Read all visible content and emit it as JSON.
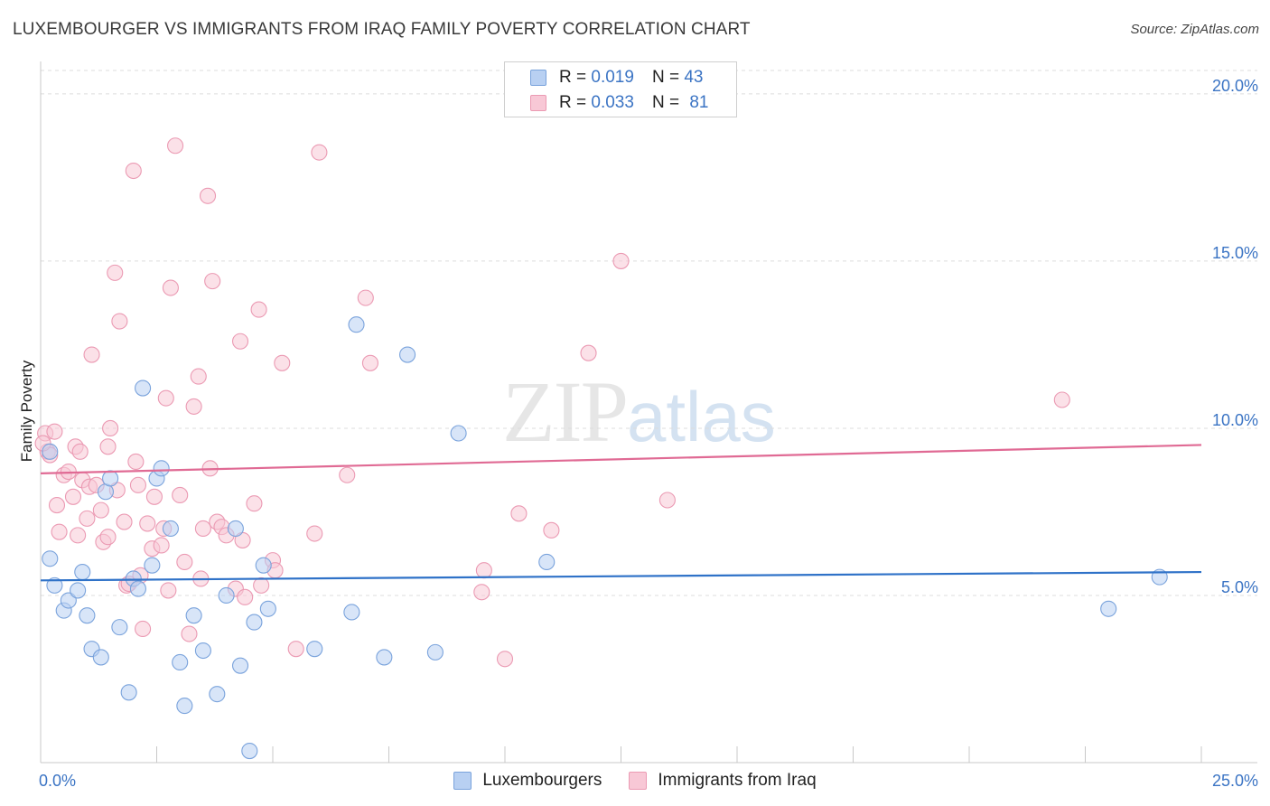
{
  "header": {
    "title": "LUXEMBOURGER VS IMMIGRANTS FROM IRAQ FAMILY POVERTY CORRELATION CHART",
    "source": "Source: ZipAtlas.com"
  },
  "watermark": {
    "zip": "ZIP",
    "atlas": "atlas"
  },
  "legend_top": {
    "rows": [
      {
        "r_label": "R = ",
        "r_value": "0.019",
        "n_label": "N = ",
        "n_value": "43"
      },
      {
        "r_label": "R = ",
        "r_value": "0.033",
        "n_label": "N = ",
        "n_value": "81"
      }
    ]
  },
  "legend_bottom": {
    "items": [
      {
        "label": "Luxembourgers"
      },
      {
        "label": "Immigrants from Iraq"
      }
    ]
  },
  "colors": {
    "blue_fill": "#b8d0f2",
    "blue_stroke": "#7aa3dc",
    "blue_line": "#2f72c8",
    "pink_fill": "#f8c8d6",
    "pink_stroke": "#eb9ab3",
    "pink_line": "#e06a94",
    "tick_text": "#3b74c4",
    "grid": "#dcdcdc"
  },
  "chart_data": {
    "type": "scatter",
    "title": "LUXEMBOURGER VS IMMIGRANTS FROM IRAQ FAMILY POVERTY CORRELATION CHART",
    "xlabel": "",
    "ylabel": "Family Poverty",
    "xlim": [
      0,
      25
    ],
    "ylim": [
      0,
      20.7
    ],
    "x_tick_labels": [
      "0.0%",
      "25.0%"
    ],
    "y_ticks": [
      5,
      10,
      15,
      20
    ],
    "y_tick_labels": [
      "5.0%",
      "10.0%",
      "15.0%",
      "20.0%"
    ],
    "series": [
      {
        "name": "Luxembourgers",
        "color": "blue",
        "R": 0.019,
        "N": 43,
        "trend": {
          "x": [
            0,
            25
          ],
          "y": [
            5.45,
            5.7
          ]
        },
        "points": [
          [
            0.2,
            9.3
          ],
          [
            0.2,
            6.1
          ],
          [
            0.3,
            5.3
          ],
          [
            0.5,
            4.55
          ],
          [
            0.6,
            4.85
          ],
          [
            0.8,
            5.15
          ],
          [
            0.9,
            5.7
          ],
          [
            1.0,
            4.4
          ],
          [
            1.1,
            3.4
          ],
          [
            1.3,
            3.15
          ],
          [
            1.4,
            8.1
          ],
          [
            1.5,
            8.5
          ],
          [
            1.7,
            4.05
          ],
          [
            1.9,
            2.1
          ],
          [
            2.0,
            5.5
          ],
          [
            2.1,
            5.2
          ],
          [
            2.2,
            11.2
          ],
          [
            2.4,
            5.9
          ],
          [
            2.5,
            8.5
          ],
          [
            2.6,
            8.8
          ],
          [
            2.8,
            7.0
          ],
          [
            3.0,
            3.0
          ],
          [
            3.1,
            1.7
          ],
          [
            3.3,
            4.4
          ],
          [
            3.5,
            3.35
          ],
          [
            3.8,
            2.05
          ],
          [
            4.0,
            5.0
          ],
          [
            4.2,
            7.0
          ],
          [
            4.3,
            2.9
          ],
          [
            4.5,
            0.35
          ],
          [
            4.6,
            4.2
          ],
          [
            4.8,
            5.9
          ],
          [
            4.9,
            4.6
          ],
          [
            5.9,
            3.4
          ],
          [
            6.7,
            4.5
          ],
          [
            6.8,
            13.1
          ],
          [
            7.4,
            3.15
          ],
          [
            7.9,
            12.2
          ],
          [
            8.5,
            3.3
          ],
          [
            9.0,
            9.85
          ],
          [
            10.9,
            6.0
          ],
          [
            23.0,
            4.6
          ],
          [
            24.1,
            5.55
          ]
        ]
      },
      {
        "name": "Immigrants from Iraq",
        "color": "pink",
        "R": 0.033,
        "N": 81,
        "trend": {
          "x": [
            0,
            25
          ],
          "y": [
            8.65,
            9.5
          ]
        },
        "points": [
          [
            0.1,
            9.85
          ],
          [
            0.15,
            9.3
          ],
          [
            0.2,
            9.2
          ],
          [
            0.3,
            9.9
          ],
          [
            0.35,
            7.7
          ],
          [
            0.4,
            6.9
          ],
          [
            0.5,
            8.6
          ],
          [
            0.6,
            8.7
          ],
          [
            0.7,
            7.95
          ],
          [
            0.75,
            9.45
          ],
          [
            0.8,
            6.8
          ],
          [
            0.85,
            9.3
          ],
          [
            0.9,
            8.45
          ],
          [
            1.0,
            7.3
          ],
          [
            1.05,
            8.25
          ],
          [
            1.1,
            12.2
          ],
          [
            1.2,
            8.3
          ],
          [
            1.3,
            7.55
          ],
          [
            1.35,
            6.6
          ],
          [
            1.45,
            6.75
          ],
          [
            1.45,
            9.45
          ],
          [
            1.5,
            10.0
          ],
          [
            1.6,
            14.65
          ],
          [
            1.65,
            8.15
          ],
          [
            1.7,
            13.2
          ],
          [
            1.8,
            7.2
          ],
          [
            1.85,
            5.3
          ],
          [
            1.9,
            5.35
          ],
          [
            2.0,
            17.7
          ],
          [
            2.05,
            9.0
          ],
          [
            2.1,
            8.3
          ],
          [
            2.15,
            5.6
          ],
          [
            2.2,
            4.0
          ],
          [
            2.3,
            7.15
          ],
          [
            2.4,
            6.4
          ],
          [
            2.45,
            7.95
          ],
          [
            2.6,
            6.5
          ],
          [
            2.65,
            7.0
          ],
          [
            2.7,
            10.9
          ],
          [
            2.75,
            5.15
          ],
          [
            2.8,
            14.2
          ],
          [
            2.9,
            18.45
          ],
          [
            3.0,
            8.0
          ],
          [
            3.1,
            6.0
          ],
          [
            3.2,
            3.85
          ],
          [
            3.3,
            10.65
          ],
          [
            3.4,
            11.55
          ],
          [
            3.45,
            5.5
          ],
          [
            3.5,
            7.0
          ],
          [
            3.6,
            16.95
          ],
          [
            3.65,
            8.8
          ],
          [
            3.7,
            14.4
          ],
          [
            3.8,
            7.2
          ],
          [
            3.9,
            7.05
          ],
          [
            4.0,
            6.8
          ],
          [
            4.2,
            5.2
          ],
          [
            4.3,
            12.6
          ],
          [
            4.35,
            6.65
          ],
          [
            4.4,
            4.95
          ],
          [
            4.6,
            7.75
          ],
          [
            4.7,
            13.55
          ],
          [
            4.75,
            5.3
          ],
          [
            5.0,
            6.05
          ],
          [
            5.05,
            5.75
          ],
          [
            5.2,
            11.95
          ],
          [
            5.5,
            3.4
          ],
          [
            5.9,
            6.85
          ],
          [
            6.0,
            18.25
          ],
          [
            6.6,
            8.6
          ],
          [
            7.0,
            13.9
          ],
          [
            7.1,
            11.95
          ],
          [
            9.5,
            5.1
          ],
          [
            9.55,
            5.75
          ],
          [
            10.0,
            3.1
          ],
          [
            10.3,
            7.45
          ],
          [
            11.0,
            6.95
          ],
          [
            11.8,
            12.25
          ],
          [
            12.5,
            15.0
          ],
          [
            13.5,
            7.85
          ],
          [
            22.0,
            10.85
          ],
          [
            0.05,
            9.55
          ]
        ]
      }
    ]
  }
}
